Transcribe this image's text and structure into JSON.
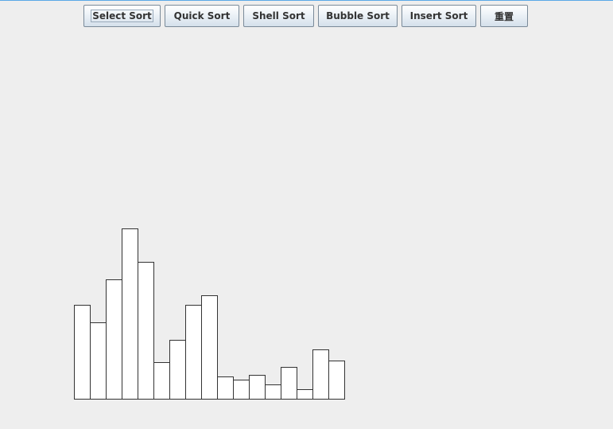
{
  "toolbar": {
    "buttons": [
      {
        "id": "select",
        "label": "Select Sort",
        "focused": true
      },
      {
        "id": "quick",
        "label": "Quick Sort",
        "focused": false
      },
      {
        "id": "shell",
        "label": "Shell Sort",
        "focused": false
      },
      {
        "id": "bubble",
        "label": "Bubble Sort",
        "focused": false
      },
      {
        "id": "insert",
        "label": "Insert Sort",
        "focused": false
      },
      {
        "id": "reset",
        "label": "重置",
        "focused": false
      }
    ]
  },
  "chart_data": {
    "type": "bar",
    "values": [
      118,
      96,
      150,
      214,
      172,
      46,
      74,
      118,
      130,
      28,
      24,
      30,
      18,
      40,
      12,
      62,
      48
    ],
    "bar_fill": "#ffffff",
    "bar_stroke": "#333333",
    "grid": false
  }
}
